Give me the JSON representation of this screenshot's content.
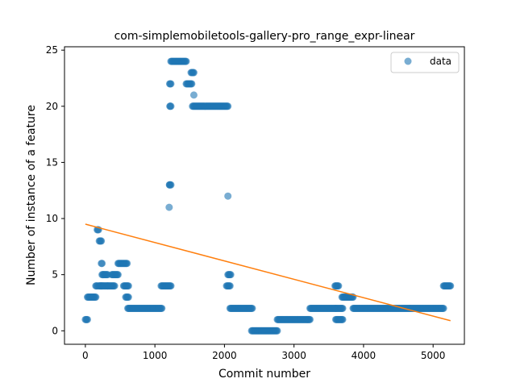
{
  "chart_data": {
    "type": "scatter",
    "title": "com-simplemobiletools-gallery-pro_range_expr-linear",
    "xlabel": "Commit number",
    "ylabel": "Number of instance of a feature",
    "xlim": [
      -300,
      5450
    ],
    "ylim": [
      -1.2,
      25.3
    ],
    "xticks": [
      0,
      1000,
      2000,
      3000,
      4000,
      5000
    ],
    "yticks": [
      0,
      5,
      10,
      15,
      20,
      25
    ],
    "legend": {
      "position": "top-right",
      "entries": [
        "data"
      ]
    },
    "colors": {
      "data": "#1f77b4",
      "fit": "#ff7f0e"
    },
    "series": [
      {
        "name": "data",
        "kind": "scatter",
        "segments": [
          [
            0,
            30,
            1
          ],
          [
            30,
            150,
            3
          ],
          [
            150,
            170,
            4
          ],
          [
            170,
            190,
            9
          ],
          [
            190,
            230,
            4
          ],
          [
            200,
            230,
            8
          ],
          [
            230,
            240,
            6
          ],
          [
            220,
            320,
            4
          ],
          [
            240,
            320,
            5
          ],
          [
            320,
            420,
            4
          ],
          [
            380,
            470,
            5
          ],
          [
            470,
            600,
            6
          ],
          [
            550,
            620,
            4
          ],
          [
            580,
            620,
            3
          ],
          [
            610,
            1100,
            2
          ],
          [
            1090,
            1230,
            4
          ],
          [
            1210,
            1230,
            13
          ],
          [
            1220,
            1230,
            20
          ],
          [
            1220,
            1230,
            22
          ],
          [
            1230,
            1450,
            24
          ],
          [
            1450,
            1530,
            22
          ],
          [
            1520,
            1560,
            23
          ],
          [
            1540,
            2050,
            20
          ],
          [
            2030,
            2080,
            4
          ],
          [
            2050,
            2090,
            5
          ],
          [
            2080,
            2400,
            2
          ],
          [
            2390,
            2760,
            0
          ],
          [
            2760,
            3230,
            1
          ],
          [
            3230,
            3600,
            2
          ],
          [
            3590,
            3640,
            4
          ],
          [
            3600,
            3700,
            1
          ],
          [
            3600,
            3700,
            2
          ],
          [
            3690,
            3850,
            3
          ],
          [
            3850,
            5150,
            2
          ],
          [
            5150,
            5250,
            4
          ]
        ],
        "points": [
          [
            1205,
            11
          ],
          [
            1210,
            13
          ],
          [
            1560,
            21
          ],
          [
            2050,
            12
          ],
          [
            1215,
            20
          ],
          [
            1212,
            22
          ]
        ]
      },
      {
        "name": "",
        "kind": "line",
        "x": [
          0,
          5250
        ],
        "y": [
          9.5,
          0.9
        ]
      }
    ]
  }
}
